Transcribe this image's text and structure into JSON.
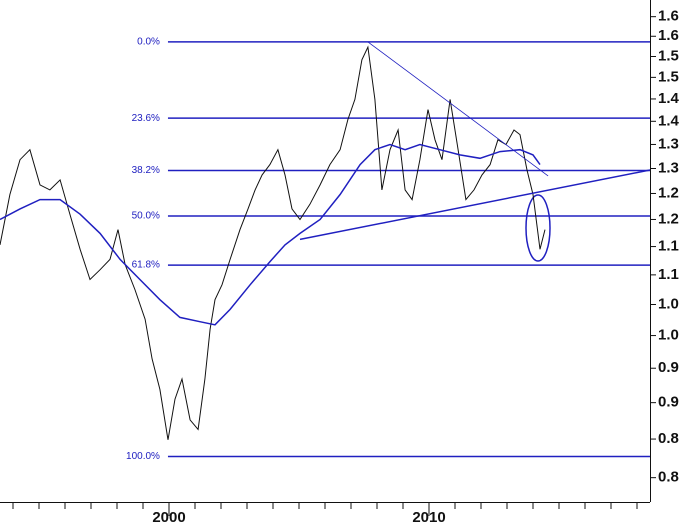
{
  "chart_data": {
    "type": "line",
    "log_scale": true,
    "xlim": [
      1993.5,
      2018.5
    ],
    "ylim": [
      0.77,
      1.67
    ],
    "xticks": [
      {
        "value": 2000,
        "label": "2000"
      },
      {
        "value": 2010,
        "label": "2010"
      }
    ],
    "xticks_minor": [
      1994,
      1995,
      1996,
      1997,
      1998,
      1999,
      2001,
      2002,
      2003,
      2004,
      2005,
      2006,
      2007,
      2008,
      2009,
      2011,
      2012,
      2013,
      2014,
      2015,
      2016,
      2017,
      2018
    ],
    "yticks": [
      {
        "value": 1.65,
        "label": "1.6"
      },
      {
        "value": 1.6,
        "label": "1.6"
      },
      {
        "value": 1.55,
        "label": "1.5"
      },
      {
        "value": 1.5,
        "label": "1.5"
      },
      {
        "value": 1.45,
        "label": "1.4"
      },
      {
        "value": 1.4,
        "label": "1.4"
      },
      {
        "value": 1.35,
        "label": "1.3"
      },
      {
        "value": 1.3,
        "label": "1.3"
      },
      {
        "value": 1.25,
        "label": "1.2"
      },
      {
        "value": 1.2,
        "label": "1.2"
      },
      {
        "value": 1.15,
        "label": "1.1"
      },
      {
        "value": 1.1,
        "label": "1.1"
      },
      {
        "value": 1.05,
        "label": "1.0"
      },
      {
        "value": 1.0,
        "label": "1.0"
      },
      {
        "value": 0.95,
        "label": "0.9"
      },
      {
        "value": 0.9,
        "label": "0.9"
      },
      {
        "value": 0.85,
        "label": "0.8"
      },
      {
        "value": 0.8,
        "label": "0.8"
      }
    ],
    "fib_color": "#2020c0",
    "fib_start": 1999.96,
    "fib_levels": [
      {
        "value": 1.586,
        "label": "0.0%"
      },
      {
        "value": 1.407,
        "label": "23.6%"
      },
      {
        "value": 1.296,
        "label": "38.2%"
      },
      {
        "value": 1.2065,
        "label": "50.0%"
      },
      {
        "value": 1.117,
        "label": "61.8%"
      },
      {
        "value": 0.827,
        "label": "100.0%"
      }
    ],
    "series": [
      {
        "color": "#111111",
        "width": 1,
        "x": [
          1993.5,
          1993.88,
          1994.27,
          1994.65,
          1995.04,
          1995.42,
          1995.81,
          1996.19,
          1996.58,
          1996.96,
          1997.35,
          1997.73,
          1998.04,
          1998.31,
          1998.69,
          1999.08,
          1999.35,
          1999.65,
          1999.96,
          2000.23,
          2000.5,
          2000.81,
          2001.12,
          2001.38,
          2001.58,
          2001.77,
          2002.04,
          2002.35,
          2002.73,
          2003.04,
          2003.31,
          2003.58,
          2003.88,
          2004.19,
          2004.46,
          2004.73,
          2005.04,
          2005.42,
          2005.81,
          2006.19,
          2006.58,
          2006.88,
          2007.15,
          2007.42,
          2007.65,
          2007.92,
          2008.19,
          2008.5,
          2008.81,
          2009.08,
          2009.35,
          2009.65,
          2009.96,
          2010.23,
          2010.5,
          2010.81,
          2011.12,
          2011.42,
          2011.73,
          2012.04,
          2012.35,
          2012.65,
          2012.96,
          2013.27,
          2013.5,
          2013.77,
          2014.0,
          2014.27,
          2014.46
        ],
        "values": [
          1.153,
          1.248,
          1.318,
          1.339,
          1.267,
          1.257,
          1.277,
          1.21,
          1.145,
          1.092,
          1.109,
          1.127,
          1.181,
          1.118,
          1.075,
          1.026,
          0.964,
          0.919,
          0.849,
          0.905,
          0.934,
          0.876,
          0.863,
          0.934,
          1.01,
          1.058,
          1.083,
          1.127,
          1.181,
          1.22,
          1.257,
          1.287,
          1.308,
          1.339,
          1.287,
          1.22,
          1.2,
          1.229,
          1.267,
          1.308,
          1.339,
          1.404,
          1.449,
          1.542,
          1.573,
          1.449,
          1.257,
          1.339,
          1.381,
          1.257,
          1.238,
          1.318,
          1.426,
          1.36,
          1.318,
          1.449,
          1.339,
          1.238,
          1.257,
          1.287,
          1.308,
          1.36,
          1.35,
          1.381,
          1.371,
          1.297,
          1.248,
          1.145,
          1.181
        ]
      },
      {
        "color": "#2020c0",
        "width": 1.5,
        "x": [
          1993.5,
          1994.27,
          1995.04,
          1995.81,
          1996.58,
          1997.35,
          1998.12,
          1998.88,
          1999.65,
          2000.42,
          2001.19,
          2001.77,
          2002.35,
          2003.12,
          2003.88,
          2004.46,
          2005.04,
          2005.81,
          2006.58,
          2007.35,
          2007.92,
          2008.5,
          2009.08,
          2009.65,
          2010.42,
          2011.19,
          2011.96,
          2012.73,
          2013.5,
          2014.0,
          2014.27
        ],
        "values": [
          1.2,
          1.22,
          1.238,
          1.238,
          1.21,
          1.174,
          1.127,
          1.092,
          1.058,
          1.029,
          1.022,
          1.017,
          1.042,
          1.083,
          1.123,
          1.153,
          1.174,
          1.2,
          1.248,
          1.308,
          1.339,
          1.35,
          1.339,
          1.35,
          1.339,
          1.328,
          1.321,
          1.335,
          1.339,
          1.328,
          1.308
        ]
      },
      {
        "color": "#2020c0",
        "width": 0.8,
        "x": [
          2007.65,
          2014.58
        ],
        "values": [
          1.586,
          1.285
        ]
      },
      {
        "color": "#2020c0",
        "width": 1.5,
        "x": [
          2005.04,
          2018.5
        ],
        "values": [
          1.163,
          1.297
        ]
      }
    ]
  }
}
